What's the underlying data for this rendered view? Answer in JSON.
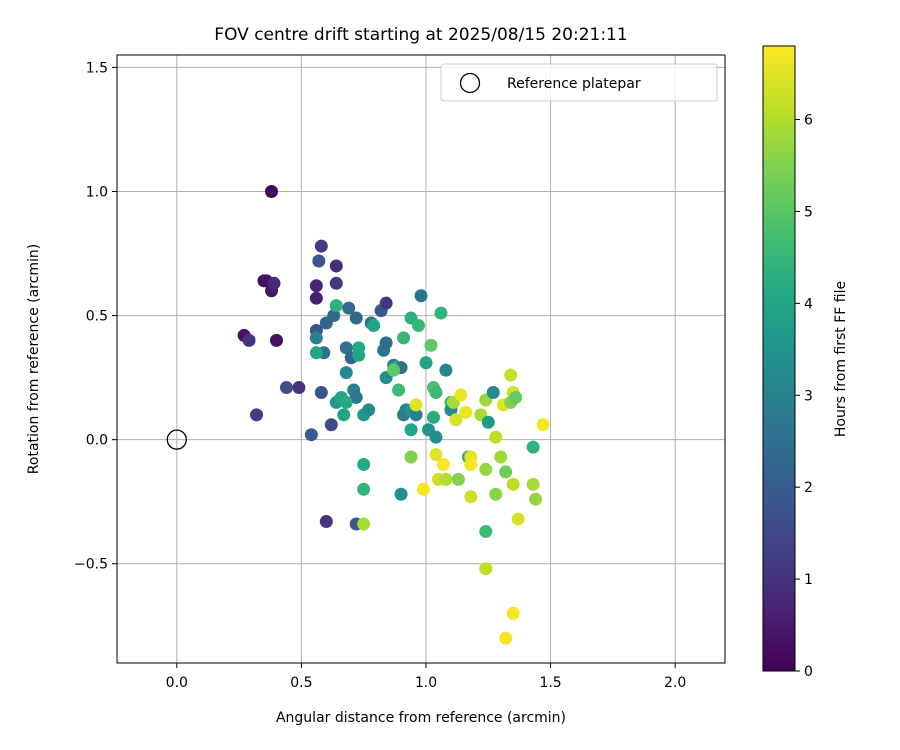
{
  "chart_data": {
    "type": "scatter",
    "title": "FOV centre drift starting at 2025/08/15 20:21:11",
    "xlabel": "Angular distance from reference (arcmin)",
    "ylabel": "Rotation from reference (arcmin)",
    "xlim": [
      -0.24,
      2.2
    ],
    "ylim": [
      -0.9,
      1.55
    ],
    "xticks": [
      0.0,
      0.5,
      1.0,
      1.5,
      2.0
    ],
    "xtick_labels": [
      "0.0",
      "0.5",
      "1.0",
      "1.5",
      "2.0"
    ],
    "yticks": [
      -0.5,
      0.0,
      0.5,
      1.0,
      1.5
    ],
    "ytick_labels": [
      "−0.5",
      "0.0",
      "0.5",
      "1.0",
      "1.5"
    ],
    "grid": true,
    "legend": {
      "position": "top-right",
      "entries": [
        "Reference platepar"
      ]
    },
    "reference_point": {
      "x": 0.0,
      "y": 0.0,
      "marker": "open-circle"
    },
    "colorbar": {
      "label": "Hours from first FF file",
      "range": [
        0,
        6.8
      ],
      "colormap": "viridis",
      "ticks": [
        0,
        1,
        2,
        3,
        4,
        5,
        6
      ],
      "tick_labels": [
        "0",
        "1",
        "2",
        "3",
        "4",
        "5",
        "6"
      ]
    },
    "points": [
      {
        "x": 0.38,
        "y": 1.0,
        "c": 0.1
      },
      {
        "x": 0.35,
        "y": 0.64,
        "c": 0.2
      },
      {
        "x": 0.36,
        "y": 0.64,
        "c": 0.3
      },
      {
        "x": 0.38,
        "y": 0.6,
        "c": 0.4
      },
      {
        "x": 0.39,
        "y": 0.63,
        "c": 0.8
      },
      {
        "x": 0.4,
        "y": 0.4,
        "c": 0.3
      },
      {
        "x": 0.27,
        "y": 0.42,
        "c": 0.3
      },
      {
        "x": 0.29,
        "y": 0.4,
        "c": 1.0
      },
      {
        "x": 0.32,
        "y": 0.1,
        "c": 1.2
      },
      {
        "x": 0.44,
        "y": 0.21,
        "c": 1.6
      },
      {
        "x": 0.49,
        "y": 0.21,
        "c": 1.0
      },
      {
        "x": 0.56,
        "y": 0.57,
        "c": 0.6
      },
      {
        "x": 0.56,
        "y": 0.62,
        "c": 0.7
      },
      {
        "x": 0.58,
        "y": 0.78,
        "c": 1.2
      },
      {
        "x": 0.57,
        "y": 0.72,
        "c": 1.8
      },
      {
        "x": 0.64,
        "y": 0.7,
        "c": 0.9
      },
      {
        "x": 0.64,
        "y": 0.63,
        "c": 1.1
      },
      {
        "x": 0.56,
        "y": 0.44,
        "c": 1.8
      },
      {
        "x": 0.63,
        "y": 0.5,
        "c": 2.3
      },
      {
        "x": 0.6,
        "y": 0.47,
        "c": 2.2
      },
      {
        "x": 0.56,
        "y": 0.41,
        "c": 3.0
      },
      {
        "x": 0.59,
        "y": 0.35,
        "c": 2.5
      },
      {
        "x": 0.56,
        "y": 0.35,
        "c": 4.0
      },
      {
        "x": 0.58,
        "y": 0.19,
        "c": 1.8
      },
      {
        "x": 0.54,
        "y": 0.02,
        "c": 2.0
      },
      {
        "x": 0.62,
        "y": 0.06,
        "c": 1.5
      },
      {
        "x": 0.6,
        "y": -0.33,
        "c": 1.0
      },
      {
        "x": 0.72,
        "y": -0.34,
        "c": 1.8
      },
      {
        "x": 0.75,
        "y": -0.34,
        "c": 5.9
      },
      {
        "x": 0.64,
        "y": 0.54,
        "c": 4.3
      },
      {
        "x": 0.69,
        "y": 0.53,
        "c": 2.4
      },
      {
        "x": 0.72,
        "y": 0.49,
        "c": 2.3
      },
      {
        "x": 0.78,
        "y": 0.47,
        "c": 2.6
      },
      {
        "x": 0.79,
        "y": 0.46,
        "c": 3.9
      },
      {
        "x": 0.82,
        "y": 0.52,
        "c": 1.9
      },
      {
        "x": 0.84,
        "y": 0.55,
        "c": 1.1
      },
      {
        "x": 0.68,
        "y": 0.37,
        "c": 2.5
      },
      {
        "x": 0.7,
        "y": 0.33,
        "c": 2.2
      },
      {
        "x": 0.73,
        "y": 0.37,
        "c": 4.1
      },
      {
        "x": 0.73,
        "y": 0.34,
        "c": 4.0
      },
      {
        "x": 0.68,
        "y": 0.27,
        "c": 3.2
      },
      {
        "x": 0.71,
        "y": 0.2,
        "c": 2.9
      },
      {
        "x": 0.72,
        "y": 0.17,
        "c": 2.7
      },
      {
        "x": 0.64,
        "y": 0.15,
        "c": 3.6
      },
      {
        "x": 0.66,
        "y": 0.17,
        "c": 4.0
      },
      {
        "x": 0.67,
        "y": 0.1,
        "c": 4.0
      },
      {
        "x": 0.68,
        "y": 0.15,
        "c": 4.1
      },
      {
        "x": 0.75,
        "y": 0.1,
        "c": 3.6
      },
      {
        "x": 0.77,
        "y": 0.12,
        "c": 3.3
      },
      {
        "x": 0.75,
        "y": -0.1,
        "c": 4.1
      },
      {
        "x": 0.75,
        "y": -0.2,
        "c": 4.4
      },
      {
        "x": 0.83,
        "y": 0.36,
        "c": 2.6
      },
      {
        "x": 0.84,
        "y": 0.39,
        "c": 2.4
      },
      {
        "x": 0.84,
        "y": 0.25,
        "c": 3.3
      },
      {
        "x": 0.87,
        "y": 0.3,
        "c": 3.0
      },
      {
        "x": 0.88,
        "y": 0.29,
        "c": 4.2
      },
      {
        "x": 0.89,
        "y": 0.2,
        "c": 4.6
      },
      {
        "x": 0.9,
        "y": 0.29,
        "c": 2.6
      },
      {
        "x": 0.87,
        "y": 0.28,
        "c": 5.1
      },
      {
        "x": 0.91,
        "y": 0.41,
        "c": 4.5
      },
      {
        "x": 0.94,
        "y": 0.49,
        "c": 4.3
      },
      {
        "x": 0.97,
        "y": 0.46,
        "c": 4.5
      },
      {
        "x": 0.98,
        "y": 0.58,
        "c": 2.6
      },
      {
        "x": 0.91,
        "y": 0.1,
        "c": 2.8
      },
      {
        "x": 0.92,
        "y": 0.12,
        "c": 3.0
      },
      {
        "x": 0.94,
        "y": 0.12,
        "c": 3.5
      },
      {
        "x": 0.96,
        "y": 0.1,
        "c": 3.0
      },
      {
        "x": 0.94,
        "y": 0.04,
        "c": 4.0
      },
      {
        "x": 0.96,
        "y": 0.14,
        "c": 6.5
      },
      {
        "x": 0.9,
        "y": -0.22,
        "c": 3.4
      },
      {
        "x": 0.94,
        "y": -0.07,
        "c": 5.5
      },
      {
        "x": 1.0,
        "y": 0.31,
        "c": 3.9
      },
      {
        "x": 1.02,
        "y": 0.38,
        "c": 5.1
      },
      {
        "x": 1.03,
        "y": 0.21,
        "c": 4.8
      },
      {
        "x": 1.04,
        "y": 0.19,
        "c": 4.6
      },
      {
        "x": 1.06,
        "y": 0.51,
        "c": 4.4
      },
      {
        "x": 1.08,
        "y": 0.28,
        "c": 3.1
      },
      {
        "x": 1.01,
        "y": 0.04,
        "c": 3.5
      },
      {
        "x": 1.03,
        "y": 0.09,
        "c": 4.2
      },
      {
        "x": 1.04,
        "y": 0.01,
        "c": 3.3
      },
      {
        "x": 1.1,
        "y": 0.15,
        "c": 4.7
      },
      {
        "x": 1.1,
        "y": 0.12,
        "c": 3.3
      },
      {
        "x": 1.11,
        "y": 0.15,
        "c": 5.9
      },
      {
        "x": 1.12,
        "y": 0.08,
        "c": 6.4
      },
      {
        "x": 1.14,
        "y": 0.18,
        "c": 6.6
      },
      {
        "x": 1.04,
        "y": -0.06,
        "c": 6.5
      },
      {
        "x": 1.07,
        "y": -0.1,
        "c": 6.7
      },
      {
        "x": 1.05,
        "y": -0.16,
        "c": 6.3
      },
      {
        "x": 1.08,
        "y": -0.16,
        "c": 6.0
      },
      {
        "x": 0.99,
        "y": -0.2,
        "c": 6.7
      },
      {
        "x": 1.13,
        "y": -0.16,
        "c": 5.5
      },
      {
        "x": 1.17,
        "y": -0.07,
        "c": 4.3
      },
      {
        "x": 1.18,
        "y": -0.07,
        "c": 6.5
      },
      {
        "x": 1.18,
        "y": -0.1,
        "c": 6.7
      },
      {
        "x": 1.18,
        "y": -0.23,
        "c": 6.3
      },
      {
        "x": 1.16,
        "y": 0.11,
        "c": 6.6
      },
      {
        "x": 1.22,
        "y": 0.1,
        "c": 5.9
      },
      {
        "x": 1.24,
        "y": 0.16,
        "c": 5.8
      },
      {
        "x": 1.25,
        "y": 0.07,
        "c": 3.7
      },
      {
        "x": 1.27,
        "y": 0.19,
        "c": 3.2
      },
      {
        "x": 1.24,
        "y": -0.12,
        "c": 5.7
      },
      {
        "x": 1.28,
        "y": 0.01,
        "c": 6.1
      },
      {
        "x": 1.3,
        "y": -0.07,
        "c": 5.8
      },
      {
        "x": 1.28,
        "y": -0.22,
        "c": 5.6
      },
      {
        "x": 1.32,
        "y": -0.13,
        "c": 5.3
      },
      {
        "x": 1.24,
        "y": -0.37,
        "c": 4.6
      },
      {
        "x": 1.24,
        "y": -0.52,
        "c": 6.1
      },
      {
        "x": 1.31,
        "y": 0.14,
        "c": 6.5
      },
      {
        "x": 1.34,
        "y": 0.15,
        "c": 5.5
      },
      {
        "x": 1.35,
        "y": 0.19,
        "c": 6.3
      },
      {
        "x": 1.36,
        "y": 0.17,
        "c": 5.2
      },
      {
        "x": 1.34,
        "y": 0.26,
        "c": 6.2
      },
      {
        "x": 1.35,
        "y": -0.18,
        "c": 6.1
      },
      {
        "x": 1.37,
        "y": -0.32,
        "c": 6.4
      },
      {
        "x": 1.35,
        "y": -0.7,
        "c": 6.7
      },
      {
        "x": 1.32,
        "y": -0.8,
        "c": 6.7
      },
      {
        "x": 1.43,
        "y": -0.18,
        "c": 5.9
      },
      {
        "x": 1.44,
        "y": -0.24,
        "c": 5.7
      },
      {
        "x": 1.43,
        "y": -0.03,
        "c": 4.4
      },
      {
        "x": 1.47,
        "y": 0.06,
        "c": 6.7
      }
    ]
  }
}
